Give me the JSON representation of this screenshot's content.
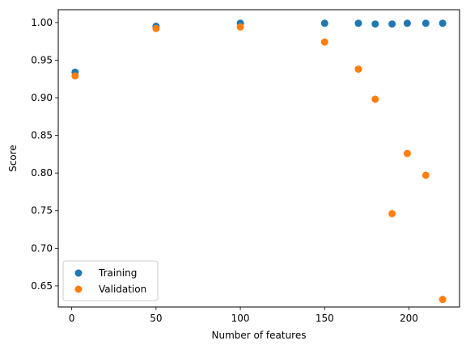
{
  "chart_data": {
    "type": "scatter",
    "xlabel": "Number of features",
    "ylabel": "Score",
    "xlim": [
      -8,
      230
    ],
    "ylim": [
      0.622,
      1.017
    ],
    "xticks": [
      0,
      50,
      100,
      150,
      200
    ],
    "yticks": [
      0.65,
      0.7,
      0.75,
      0.8,
      0.85,
      0.9,
      0.95,
      1.0
    ],
    "xtick_labels": [
      "0",
      "50",
      "100",
      "150",
      "200"
    ],
    "ytick_labels": [
      "0.65",
      "0.70",
      "0.75",
      "0.80",
      "0.85",
      "0.90",
      "0.95",
      "1.00"
    ],
    "grid": false,
    "legend_position": "lower-left",
    "series": [
      {
        "name": "Training",
        "color": "#1f77b4",
        "x": [
          2,
          50,
          100,
          150,
          170,
          180,
          190,
          199,
          210,
          220
        ],
        "y": [
          0.934,
          0.995,
          0.999,
          0.999,
          0.999,
          0.998,
          0.998,
          0.999,
          0.999,
          0.999
        ]
      },
      {
        "name": "Validation",
        "color": "#ff7f0e",
        "x": [
          2,
          50,
          100,
          150,
          170,
          180,
          190,
          199,
          210,
          220
        ],
        "y": [
          0.929,
          0.992,
          0.994,
          0.974,
          0.938,
          0.898,
          0.746,
          0.826,
          0.797,
          0.632
        ]
      }
    ]
  }
}
